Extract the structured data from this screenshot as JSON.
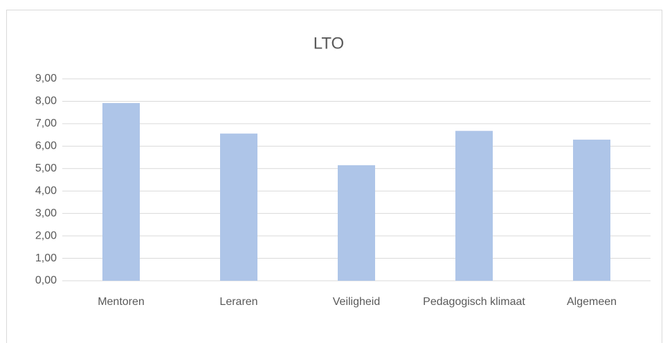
{
  "chart_data": {
    "type": "bar",
    "title": "LTO",
    "categories": [
      "Mentoren",
      "Leraren",
      "Veiligheid",
      "Pedagogisch klimaat",
      "Algemeen"
    ],
    "values": [
      7.92,
      6.56,
      5.15,
      6.68,
      6.29
    ],
    "color": "#aec5e8",
    "ylim": [
      0,
      9
    ],
    "yticks": [
      {
        "value": 0,
        "label": "0,00"
      },
      {
        "value": 1,
        "label": "1,00"
      },
      {
        "value": 2,
        "label": "2,00"
      },
      {
        "value": 3,
        "label": "3,00"
      },
      {
        "value": 4,
        "label": "4,00"
      },
      {
        "value": 5,
        "label": "5,00"
      },
      {
        "value": 6,
        "label": "6,00"
      },
      {
        "value": 7,
        "label": "7,00"
      },
      {
        "value": 8,
        "label": "8,00"
      },
      {
        "value": 9,
        "label": "9,00"
      }
    ],
    "grid": true
  }
}
